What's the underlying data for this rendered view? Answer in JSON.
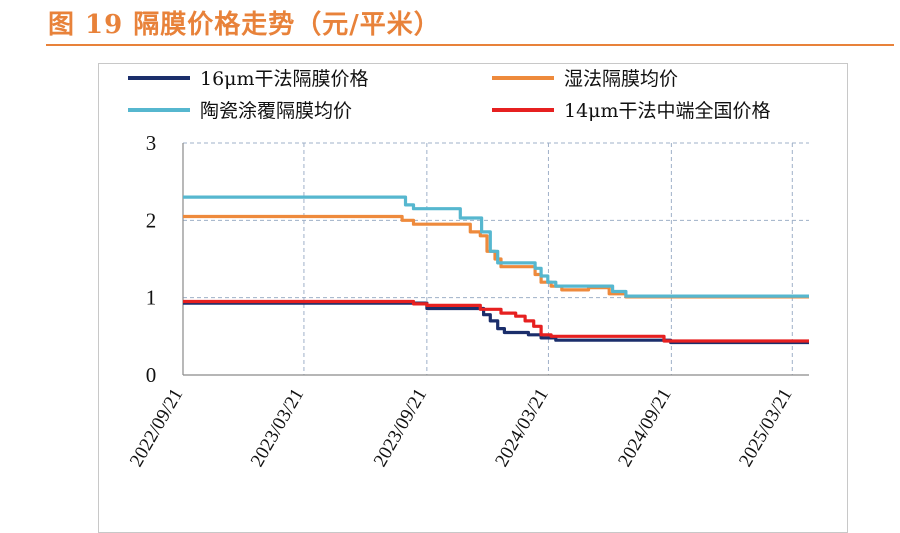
{
  "figure": {
    "title": "图 19  隔膜价格走势（元/平米）"
  },
  "chart_data": {
    "type": "line",
    "title": "图 19  隔膜价格走势（元/平米）",
    "xlabel": "",
    "ylabel": "",
    "ylim": [
      0,
      3
    ],
    "yticks": [
      "0",
      "1",
      "2",
      "3"
    ],
    "xlim": [
      "2022-09-21",
      "2025-04-15"
    ],
    "xticks": [
      "2022/09/21",
      "2023/03/21",
      "2023/09/21",
      "2024/03/21",
      "2024/09/21",
      "2025/03/21"
    ],
    "grid": true,
    "legend_position": "top",
    "series": [
      {
        "name": "16μm干法隔膜价格",
        "color": "#1B2E6B",
        "points": [
          [
            "2022-09-21",
            0.93
          ],
          [
            "2023-09-20",
            0.93
          ],
          [
            "2023-09-21",
            0.86
          ],
          [
            "2023-12-10",
            0.86
          ],
          [
            "2023-12-15",
            0.78
          ],
          [
            "2023-12-25",
            0.7
          ],
          [
            "2024-01-05",
            0.6
          ],
          [
            "2024-01-15",
            0.55
          ],
          [
            "2024-02-20",
            0.52
          ],
          [
            "2024-03-10",
            0.48
          ],
          [
            "2024-04-01",
            0.45
          ],
          [
            "2024-09-10",
            0.45
          ],
          [
            "2024-09-20",
            0.42
          ],
          [
            "2025-04-15",
            0.42
          ]
        ]
      },
      {
        "name": "湿法隔膜均价",
        "color": "#EE8A3C",
        "points": [
          [
            "2022-09-21",
            2.05
          ],
          [
            "2023-08-01",
            2.05
          ],
          [
            "2023-08-15",
            2.0
          ],
          [
            "2023-09-01",
            1.95
          ],
          [
            "2023-11-15",
            1.95
          ],
          [
            "2023-11-25",
            1.85
          ],
          [
            "2023-12-10",
            1.8
          ],
          [
            "2023-12-20",
            1.6
          ],
          [
            "2024-01-01",
            1.5
          ],
          [
            "2024-01-10",
            1.4
          ],
          [
            "2024-02-20",
            1.4
          ],
          [
            "2024-03-01",
            1.3
          ],
          [
            "2024-03-10",
            1.2
          ],
          [
            "2024-03-25",
            1.15
          ],
          [
            "2024-04-10",
            1.1
          ],
          [
            "2024-05-15",
            1.1
          ],
          [
            "2024-05-20",
            1.13
          ],
          [
            "2024-06-10",
            1.13
          ],
          [
            "2024-06-20",
            1.05
          ],
          [
            "2024-07-15",
            1.01
          ],
          [
            "2025-04-15",
            1.01
          ]
        ]
      },
      {
        "name": "陶瓷涂覆隔膜均价",
        "color": "#56B7CF",
        "points": [
          [
            "2022-09-21",
            2.3
          ],
          [
            "2023-08-10",
            2.3
          ],
          [
            "2023-08-20",
            2.2
          ],
          [
            "2023-09-01",
            2.15
          ],
          [
            "2023-11-01",
            2.15
          ],
          [
            "2023-11-10",
            2.03
          ],
          [
            "2023-12-05",
            2.03
          ],
          [
            "2023-12-12",
            1.85
          ],
          [
            "2023-12-25",
            1.6
          ],
          [
            "2024-01-05",
            1.45
          ],
          [
            "2024-01-15",
            1.45
          ],
          [
            "2024-02-25",
            1.45
          ],
          [
            "2024-03-01",
            1.38
          ],
          [
            "2024-03-10",
            1.28
          ],
          [
            "2024-03-20",
            1.2
          ],
          [
            "2024-04-01",
            1.15
          ],
          [
            "2024-06-15",
            1.15
          ],
          [
            "2024-06-25",
            1.08
          ],
          [
            "2024-07-15",
            1.02
          ],
          [
            "2025-04-15",
            1.02
          ]
        ]
      },
      {
        "name": "14μm干法中端全国价格",
        "color": "#E62020",
        "points": [
          [
            "2022-09-21",
            0.95
          ],
          [
            "2023-09-01",
            0.92
          ],
          [
            "2023-09-21",
            0.9
          ],
          [
            "2023-12-01",
            0.9
          ],
          [
            "2023-12-10",
            0.85
          ],
          [
            "2024-01-10",
            0.8
          ],
          [
            "2024-02-01",
            0.76
          ],
          [
            "2024-02-15",
            0.7
          ],
          [
            "2024-02-28",
            0.63
          ],
          [
            "2024-03-10",
            0.52
          ],
          [
            "2024-03-25",
            0.5
          ],
          [
            "2024-09-01",
            0.5
          ],
          [
            "2024-09-10",
            0.44
          ],
          [
            "2025-04-15",
            0.44
          ]
        ]
      }
    ]
  }
}
